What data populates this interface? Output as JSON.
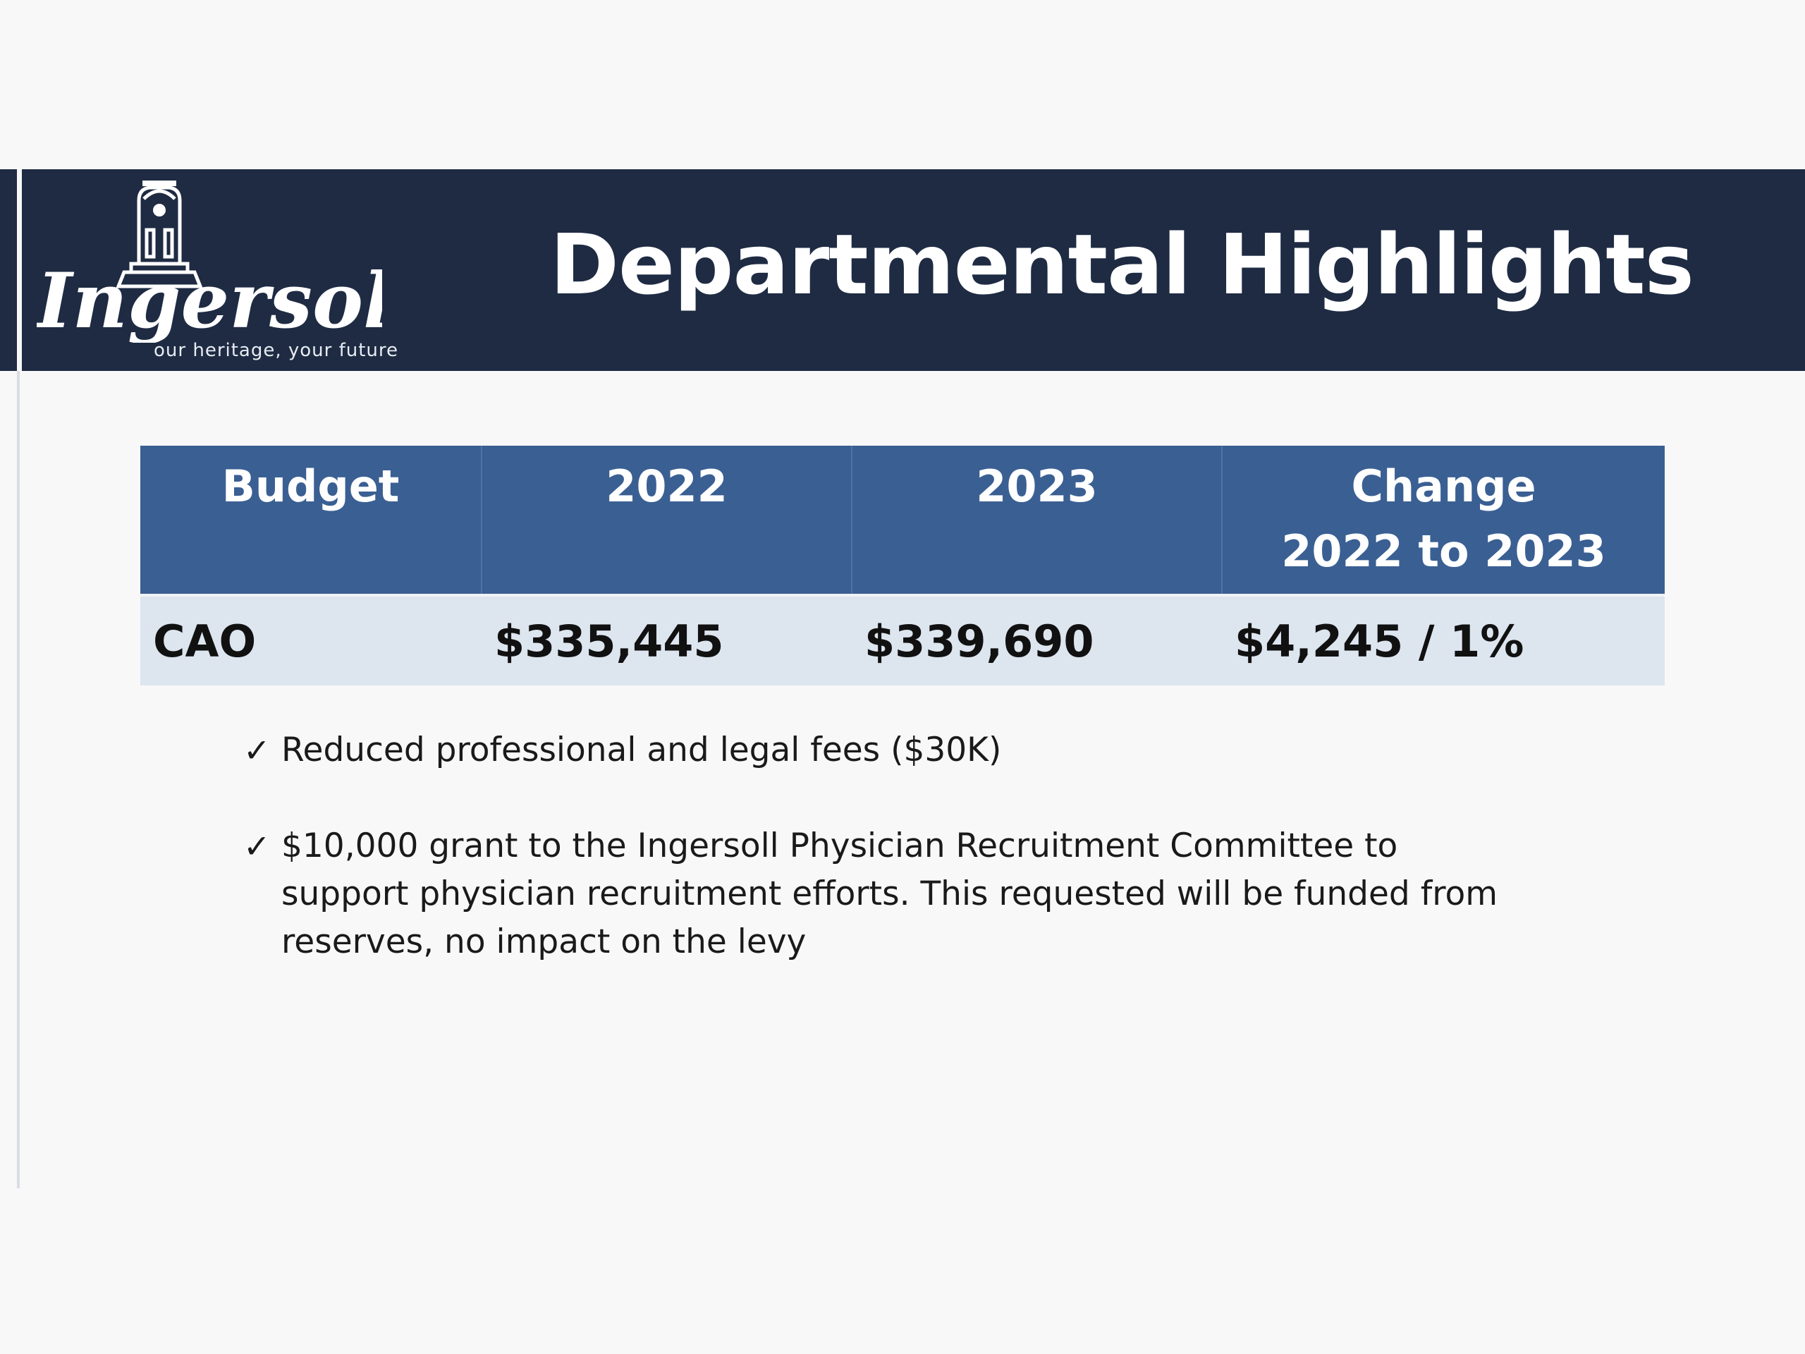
{
  "header": {
    "title": "Departmental Highlights",
    "logo": {
      "wordmark": "Ingersoll",
      "tagline": "our heritage, your future"
    }
  },
  "table": {
    "headers": [
      {
        "label": "Budget",
        "sub": ""
      },
      {
        "label": "2022",
        "sub": ""
      },
      {
        "label": "2023",
        "sub": ""
      },
      {
        "label": "Change",
        "sub": "2022 to 2023"
      }
    ],
    "rows": [
      {
        "name": "CAO",
        "y2022": "$335,445",
        "y2023": "$339,690",
        "change": "$4,245 / 1%"
      }
    ]
  },
  "bullets": [
    {
      "icon": "checkmark-icon",
      "text": "Reduced professional and legal fees  ($30K)"
    },
    {
      "icon": "checkmark-icon",
      "text": "$10,000 grant to the Ingersoll Physician Recruitment Committee to support physician recruitment efforts. This requested will be funded from reserves, no impact on the levy"
    }
  ],
  "colors": {
    "header_band": "#1e2b43",
    "table_header": "#3a5f93",
    "table_row": "#dde5ef",
    "background": "#f8f8f8"
  }
}
